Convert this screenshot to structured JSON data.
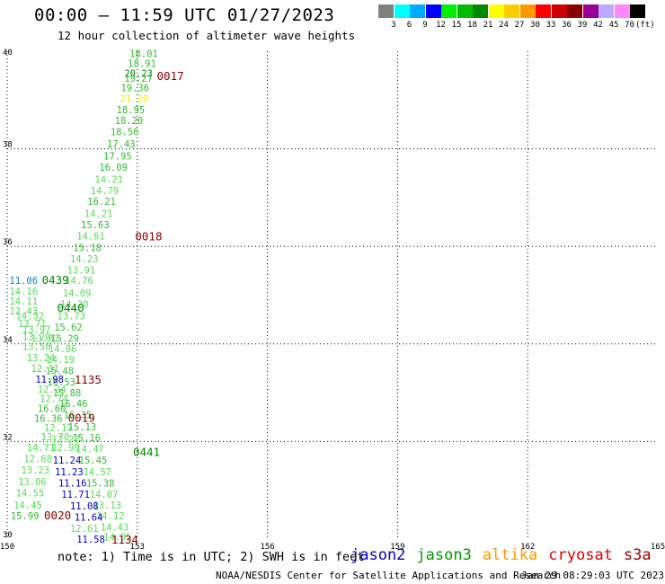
{
  "header": {
    "title": "00:00 – 11:59 UTC 01/27/2023",
    "subtitle": "12 hour collection of altimeter wave heights"
  },
  "colorbar": {
    "unit": "(ft)",
    "swatches": [
      {
        "color": "#808080",
        "label": "3"
      },
      {
        "color": "#00ffff",
        "label": "6"
      },
      {
        "color": "#00aaff",
        "label": "9"
      },
      {
        "color": "#0000ff",
        "label": "12"
      },
      {
        "color": "#00ee00",
        "label": "15"
      },
      {
        "color": "#00bb00",
        "label": "18"
      },
      {
        "color": "#008800",
        "label": "21"
      },
      {
        "color": "#ffff00",
        "label": "24"
      },
      {
        "color": "#ffcc00",
        "label": "27"
      },
      {
        "color": "#ff9900",
        "label": "30"
      },
      {
        "color": "#ff0000",
        "label": "33"
      },
      {
        "color": "#cc0000",
        "label": "36"
      },
      {
        "color": "#880000",
        "label": "39"
      },
      {
        "color": "#990099",
        "label": "42"
      },
      {
        "color": "#bbaaff",
        "label": "45"
      },
      {
        "color": "#ff88ff",
        "label": "70"
      },
      {
        "color": "#000000",
        "label": ""
      }
    ]
  },
  "chart_data": {
    "type": "scatter",
    "xlim": [
      150,
      165
    ],
    "ylim": [
      30,
      40
    ],
    "xticks": [
      "150",
      "153",
      "156",
      "159",
      "162",
      "165"
    ],
    "yticks": [
      "30",
      "32",
      "34",
      "36",
      "38",
      "40"
    ],
    "grid": true,
    "colors": {
      "light": "#55dd55",
      "mid": "#33bb33",
      "dark": "#008800",
      "yellow": "#eeee00",
      "blue": "#0000cc",
      "lightblue": "#0088cc",
      "time": "#880000"
    },
    "points": [
      {
        "x": 152.82,
        "y": 39.95,
        "label": "18.01",
        "c": "mid"
      },
      {
        "x": 152.78,
        "y": 39.75,
        "label": "18.91",
        "c": "mid"
      },
      {
        "x": 152.7,
        "y": 39.55,
        "label": "20.23",
        "c": "dark"
      },
      {
        "x": 152.7,
        "y": 39.45,
        "label": "19.27",
        "c": "mid"
      },
      {
        "x": 152.62,
        "y": 39.25,
        "label": "19.36",
        "c": "mid"
      },
      {
        "x": 152.6,
        "y": 39.03,
        "label": "21.20",
        "c": "yellow"
      },
      {
        "x": 152.52,
        "y": 38.8,
        "label": "18.95",
        "c": "mid"
      },
      {
        "x": 152.48,
        "y": 38.58,
        "label": "18.20",
        "c": "mid"
      },
      {
        "x": 152.38,
        "y": 38.35,
        "label": "18.56",
        "c": "mid"
      },
      {
        "x": 152.3,
        "y": 38.1,
        "label": "17.43",
        "c": "mid"
      },
      {
        "x": 152.22,
        "y": 37.85,
        "label": "17.95",
        "c": "mid"
      },
      {
        "x": 152.12,
        "y": 37.62,
        "label": "16.09",
        "c": "mid"
      },
      {
        "x": 152.02,
        "y": 37.38,
        "label": "14.21",
        "c": "light"
      },
      {
        "x": 151.92,
        "y": 37.15,
        "label": "14.79",
        "c": "light"
      },
      {
        "x": 151.85,
        "y": 36.92,
        "label": "16.21",
        "c": "mid"
      },
      {
        "x": 151.78,
        "y": 36.68,
        "label": "14.21",
        "c": "light"
      },
      {
        "x": 151.7,
        "y": 36.45,
        "label": "15.63",
        "c": "mid"
      },
      {
        "x": 151.6,
        "y": 36.22,
        "label": "14.61",
        "c": "light"
      },
      {
        "x": 151.52,
        "y": 35.98,
        "label": "15.18",
        "c": "mid"
      },
      {
        "x": 151.45,
        "y": 35.75,
        "label": "14.23",
        "c": "light"
      },
      {
        "x": 151.38,
        "y": 35.52,
        "label": "13.91",
        "c": "light"
      },
      {
        "x": 151.33,
        "y": 35.3,
        "label": "14.76",
        "c": "light"
      },
      {
        "x": 151.28,
        "y": 35.05,
        "label": "14.09",
        "c": "light"
      },
      {
        "x": 151.22,
        "y": 34.82,
        "label": "14.20",
        "c": "light"
      },
      {
        "x": 151.15,
        "y": 34.58,
        "label": "13.73",
        "c": "light"
      },
      {
        "x": 151.08,
        "y": 34.35,
        "label": "15.62",
        "c": "mid"
      },
      {
        "x": 151.0,
        "y": 34.12,
        "label": "15.29",
        "c": "mid"
      },
      {
        "x": 150.95,
        "y": 33.9,
        "label": "14.86",
        "c": "light"
      },
      {
        "x": 150.9,
        "y": 33.68,
        "label": "14.19",
        "c": "light"
      },
      {
        "x": 150.88,
        "y": 33.45,
        "label": "15.48",
        "c": "mid"
      },
      {
        "x": 150.92,
        "y": 33.22,
        "label": "16.53",
        "c": "mid"
      },
      {
        "x": 151.05,
        "y": 33.0,
        "label": "15.88",
        "c": "mid"
      },
      {
        "x": 151.2,
        "y": 32.78,
        "label": "16.46",
        "c": "mid"
      },
      {
        "x": 151.3,
        "y": 32.55,
        "label": "16.35",
        "c": "mid"
      },
      {
        "x": 151.4,
        "y": 32.3,
        "label": "15.13",
        "c": "mid"
      },
      {
        "x": 151.5,
        "y": 32.08,
        "label": "15.16",
        "c": "mid"
      },
      {
        "x": 151.58,
        "y": 31.85,
        "label": "14.47",
        "c": "light"
      },
      {
        "x": 151.65,
        "y": 31.62,
        "label": "15.45",
        "c": "mid"
      },
      {
        "x": 151.75,
        "y": 31.38,
        "label": "14.57",
        "c": "light"
      },
      {
        "x": 151.82,
        "y": 31.15,
        "label": "15.38",
        "c": "mid"
      },
      {
        "x": 151.9,
        "y": 30.92,
        "label": "14.07",
        "c": "light"
      },
      {
        "x": 151.98,
        "y": 30.7,
        "label": "13.13",
        "c": "light"
      },
      {
        "x": 152.05,
        "y": 30.48,
        "label": "14.12",
        "c": "light"
      },
      {
        "x": 152.15,
        "y": 30.25,
        "label": "14.43",
        "c": "light"
      },
      {
        "x": 152.22,
        "y": 30.05,
        "label": "14.95",
        "c": "light"
      },
      {
        "x": 150.05,
        "y": 35.3,
        "label": "11.06",
        "c": "lightblue"
      },
      {
        "x": 150.05,
        "y": 35.08,
        "label": "14.16",
        "c": "light"
      },
      {
        "x": 150.05,
        "y": 34.88,
        "label": "14.11",
        "c": "light"
      },
      {
        "x": 150.05,
        "y": 34.68,
        "label": "12.43",
        "c": "light"
      },
      {
        "x": 150.2,
        "y": 34.58,
        "label": "14.32",
        "c": "light"
      },
      {
        "x": 150.25,
        "y": 34.42,
        "label": "13.71",
        "c": "light"
      },
      {
        "x": 150.35,
        "y": 34.3,
        "label": "13.97",
        "c": "light"
      },
      {
        "x": 150.35,
        "y": 34.15,
        "label": "13.20",
        "c": "light"
      },
      {
        "x": 150.55,
        "y": 34.12,
        "label": "13.87",
        "c": "light"
      },
      {
        "x": 150.35,
        "y": 33.95,
        "label": "13.58",
        "c": "light"
      },
      {
        "x": 150.45,
        "y": 33.72,
        "label": "13.24",
        "c": "light"
      },
      {
        "x": 150.55,
        "y": 33.5,
        "label": "12.11",
        "c": "light"
      },
      {
        "x": 150.65,
        "y": 33.28,
        "label": "11.98",
        "c": "blue"
      },
      {
        "x": 150.7,
        "y": 33.08,
        "label": "12.24",
        "c": "light"
      },
      {
        "x": 150.75,
        "y": 32.88,
        "label": "12.74",
        "c": "light"
      },
      {
        "x": 150.7,
        "y": 32.68,
        "label": "16.60",
        "c": "mid"
      },
      {
        "x": 150.62,
        "y": 32.48,
        "label": "16.36",
        "c": "mid"
      },
      {
        "x": 150.85,
        "y": 32.28,
        "label": "12.17",
        "c": "light"
      },
      {
        "x": 150.78,
        "y": 32.1,
        "label": "13.70",
        "c": "light"
      },
      {
        "x": 151.02,
        "y": 32.05,
        "label": "12.22",
        "c": "light"
      },
      {
        "x": 150.45,
        "y": 31.88,
        "label": "14.71",
        "c": "light"
      },
      {
        "x": 151.02,
        "y": 31.88,
        "label": "12.99",
        "c": "light"
      },
      {
        "x": 150.38,
        "y": 31.65,
        "label": "12.68",
        "c": "light"
      },
      {
        "x": 151.05,
        "y": 31.62,
        "label": "11.24",
        "c": "blue"
      },
      {
        "x": 150.32,
        "y": 31.42,
        "label": "13.23",
        "c": "light"
      },
      {
        "x": 151.1,
        "y": 31.38,
        "label": "11.23",
        "c": "blue"
      },
      {
        "x": 150.25,
        "y": 31.18,
        "label": "13.06",
        "c": "light"
      },
      {
        "x": 151.18,
        "y": 31.15,
        "label": "11.16",
        "c": "blue"
      },
      {
        "x": 150.2,
        "y": 30.95,
        "label": "14.55",
        "c": "light"
      },
      {
        "x": 151.25,
        "y": 30.92,
        "label": "11.71",
        "c": "blue"
      },
      {
        "x": 150.15,
        "y": 30.7,
        "label": "14.45",
        "c": "light"
      },
      {
        "x": 151.45,
        "y": 30.68,
        "label": "11.08",
        "c": "blue"
      },
      {
        "x": 150.08,
        "y": 30.48,
        "label": "15.99",
        "c": "mid"
      },
      {
        "x": 151.55,
        "y": 30.45,
        "label": "11.64",
        "c": "blue"
      },
      {
        "x": 151.45,
        "y": 30.22,
        "label": "12.61",
        "c": "light"
      },
      {
        "x": 151.6,
        "y": 30.0,
        "label": "11.58",
        "c": "blue"
      }
    ],
    "time_labels": [
      {
        "x": 153.45,
        "y": 39.5,
        "label": "0017",
        "c": "time"
      },
      {
        "x": 152.95,
        "y": 36.22,
        "label": "0018",
        "c": "time"
      },
      {
        "x": 150.8,
        "y": 35.32,
        "label": "0439",
        "c": "dark"
      },
      {
        "x": 151.15,
        "y": 34.75,
        "label": "0440",
        "c": "dark"
      },
      {
        "x": 151.55,
        "y": 33.28,
        "label": "1135",
        "c": "time"
      },
      {
        "x": 151.4,
        "y": 32.5,
        "label": "0019",
        "c": "time"
      },
      {
        "x": 152.9,
        "y": 31.8,
        "label": "0441",
        "c": "dark"
      },
      {
        "x": 150.85,
        "y": 30.5,
        "label": "0020",
        "c": "time"
      },
      {
        "x": 152.4,
        "y": 30.0,
        "label": "1134",
        "c": "time"
      }
    ]
  },
  "footer": {
    "note": "note: 1) Time is in UTC; 2) SWH is in feet",
    "legend": [
      {
        "label": "jason2",
        "color": "#0000cc"
      },
      {
        "label": "jason3",
        "color": "#009900"
      },
      {
        "label": "altika",
        "color": "#ff9900"
      },
      {
        "label": "cryosat",
        "color": "#dd0000"
      },
      {
        "label": "s3a",
        "color": "#990000"
      }
    ],
    "credit": "NOAA/NESDIS Center for Satellite Applications and Research",
    "timestamp": "Jan 29 08:29:03 UTC 2023"
  }
}
